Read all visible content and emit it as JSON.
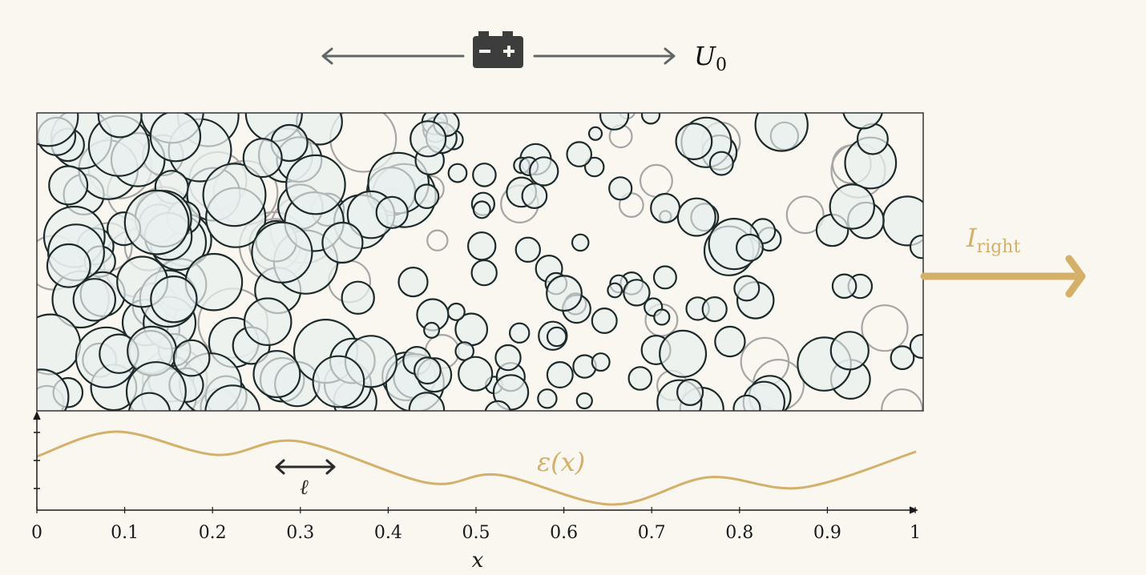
{
  "source_label": "U",
  "source_label_sub": "0",
  "current_label": "I",
  "current_label_sub": "right",
  "porosity_label": "ε(x)",
  "length_scale_label": "ℓ",
  "x_axis_label": "x",
  "x_ticks": [
    "0",
    "0.1",
    "0.2",
    "0.3",
    "0.4",
    "0.5",
    "0.6",
    "0.7",
    "0.8",
    "0.9",
    "1"
  ],
  "colors": {
    "background": "#faf6f0",
    "particle_fill": "#e9f0ee",
    "particle_stroke": "#1c2a2a",
    "faded_stroke": "#a6a6a6",
    "accent": "#d4b06a",
    "axis": "#1a1a1a",
    "arrow_gray": "#5f6866",
    "battery": "#3d3d3d"
  },
  "icons": {
    "source": "battery-icon"
  }
}
